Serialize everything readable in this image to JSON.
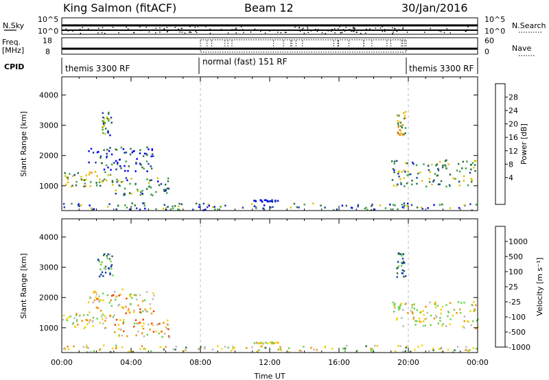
{
  "header": {
    "station": "King Salmon (fitACF)",
    "beam": "Beam 12",
    "date": "30/Jan/2016"
  },
  "status_panels": {
    "nsky_label": "N.Sky",
    "nsky_ticks": [
      "10^5",
      "10^0"
    ],
    "nsearch_label": "N.Search",
    "nsearch_ticks": [
      "10^5",
      "10^0"
    ],
    "freq_label_line1": "Freq.",
    "freq_label_line2": "[MHz]",
    "freq_ticks": [
      "18",
      "8"
    ],
    "nave_label": "Nave",
    "nave_ticks": [
      "60",
      "0"
    ],
    "cpid_label": "CPID",
    "cpid_segments": [
      {
        "label": "themis 3300 RF",
        "start_h": 0,
        "end_h": 8
      },
      {
        "label": "normal (fast) 151 RF",
        "start_h": 8,
        "end_h": 20
      },
      {
        "label": "themis 3300 RF",
        "start_h": 20,
        "end_h": 24
      }
    ]
  },
  "colorbars": {
    "power": {
      "label": "Power [dB]",
      "ticks": [
        "28",
        "24",
        "20",
        "16",
        "12",
        "8",
        "4"
      ],
      "colors": [
        "#0000ff",
        "#1a3fa8",
        "#2e6e3a",
        "#3fa04a",
        "#d8c400",
        "#f4b400",
        "#f08000",
        "#e8400a",
        "#e60000"
      ]
    },
    "velocity": {
      "label": "Velocity [m s⁻¹]",
      "ticks": [
        "1000",
        "500",
        "100",
        "25",
        "-25",
        "-100",
        "-500",
        "-1000"
      ],
      "colors": [
        "#1a3fa8",
        "#2e6e3a",
        "#6ad04a",
        "#b8b8b8",
        "#f4d000",
        "#f09000",
        "#f04000",
        "#e60000"
      ]
    }
  },
  "chart_data": [
    {
      "type": "heatmap",
      "title": "",
      "xlabel": "",
      "ylabel": "Slant Range [km]",
      "xlim_hours": [
        0,
        24
      ],
      "ylim": [
        180,
        4600
      ],
      "yticks": [
        1000,
        2000,
        3000,
        4000
      ],
      "quantity": "Power [dB]",
      "regions": [
        {
          "t0": 0.0,
          "t1": 3.0,
          "r0": 1000,
          "r1": 1500,
          "level": 0.45
        },
        {
          "t0": 1.5,
          "t1": 5.3,
          "r0": 1500,
          "r1": 2300,
          "level": 0.15
        },
        {
          "t0": 2.3,
          "t1": 2.9,
          "r0": 2700,
          "r1": 3500,
          "level": 0.35
        },
        {
          "t0": 3.0,
          "t1": 6.2,
          "r0": 700,
          "r1": 1300,
          "level": 0.3
        },
        {
          "t0": 19.0,
          "t1": 24.0,
          "r0": 1000,
          "r1": 1900,
          "level": 0.35
        },
        {
          "t0": 19.3,
          "t1": 19.8,
          "r0": 2600,
          "r1": 3500,
          "level": 0.5
        },
        {
          "t0": 0.0,
          "t1": 24.0,
          "r0": 220,
          "r1": 450,
          "level": 0.25
        },
        {
          "t0": 11.0,
          "t1": 12.5,
          "r0": 500,
          "r1": 560,
          "level": 0.1
        }
      ]
    },
    {
      "type": "heatmap",
      "title": "",
      "xlabel": "Time UT",
      "ylabel": "Slant Range [km]",
      "xlim_hours": [
        0,
        24
      ],
      "ylim": [
        180,
        4600
      ],
      "yticks": [
        1000,
        2000,
        3000,
        4000
      ],
      "xticks": [
        "00:00",
        "04:00",
        "08:00",
        "12:00",
        "16:00",
        "20:00",
        "00:00"
      ],
      "quantity": "Velocity [m s-1]",
      "regions": [
        {
          "t0": 0.0,
          "t1": 3.0,
          "r0": 1000,
          "r1": 1500,
          "level": 0.5
        },
        {
          "t0": 1.5,
          "t1": 5.3,
          "r0": 1500,
          "r1": 2300,
          "level": 0.45
        },
        {
          "t0": 2.0,
          "t1": 2.9,
          "r0": 2700,
          "r1": 3500,
          "level": 0.85
        },
        {
          "t0": 3.0,
          "t1": 6.2,
          "r0": 700,
          "r1": 1300,
          "level": 0.4
        },
        {
          "t0": 19.0,
          "t1": 24.0,
          "r0": 1000,
          "r1": 1900,
          "level": 0.5
        },
        {
          "t0": 19.3,
          "t1": 19.8,
          "r0": 2600,
          "r1": 3500,
          "level": 0.85
        },
        {
          "t0": 0.0,
          "t1": 24.0,
          "r0": 220,
          "r1": 450,
          "level": 0.55
        },
        {
          "t0": 11.0,
          "t1": 12.5,
          "r0": 500,
          "r1": 560,
          "level": 0.5
        }
      ]
    }
  ]
}
